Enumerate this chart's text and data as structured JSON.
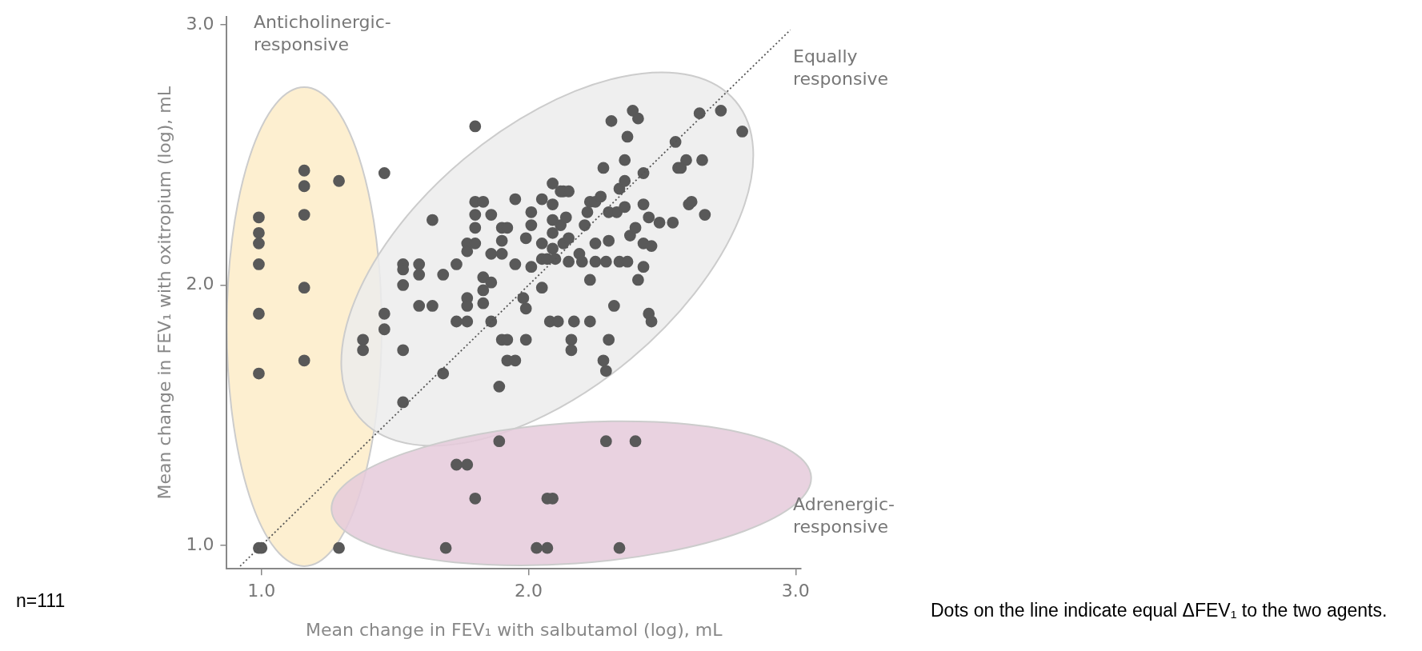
{
  "chart_data": {
    "type": "scatter",
    "xlabel": "Mean change in FEV₁ with salbutamol (log), mL",
    "ylabel": "Mean change in FEV₁ with oxitropium (log), mL",
    "xlim": [
      0.87,
      3.02
    ],
    "ylim": [
      0.91,
      3.03
    ],
    "xticks": [
      {
        "value": 1,
        "label": "1.0"
      },
      {
        "value": 2,
        "label": "2.0"
      },
      {
        "value": 3,
        "label": "3.0"
      }
    ],
    "yticks": [
      {
        "value": 1,
        "label": "1.0"
      },
      {
        "value": 2,
        "label": "2.0"
      },
      {
        "value": 3,
        "label": "3.0"
      }
    ],
    "marker": "circle",
    "annotations": [
      "Anticholinergic-responsive",
      "Equally responsive",
      "Adrenergic-responsive",
      "n=111",
      "Dots on the line indicate equal ΔFEV₁ to the two agents."
    ],
    "series": [
      {
        "type": "scatter",
        "color": "#595959",
        "x": [
          0.99,
          0.99,
          0.99,
          0.99,
          0.99,
          0.99,
          0.99,
          1.0,
          1.16,
          1.16,
          1.16,
          1.16,
          1.16,
          1.29,
          1.46,
          1.38,
          1.38,
          1.46,
          1.46,
          1.53,
          1.53,
          1.53,
          1.53,
          1.53,
          1.59,
          1.59,
          1.59,
          1.64,
          1.64,
          1.68,
          1.68,
          1.73,
          1.73,
          1.77,
          1.77,
          1.77,
          1.77,
          1.77,
          1.8,
          1.8,
          1.8,
          1.8,
          1.8,
          1.83,
          1.83,
          1.83,
          1.83,
          1.86,
          1.86,
          1.86,
          1.86,
          1.9,
          1.9,
          1.9,
          1.9,
          1.89,
          1.92,
          1.92,
          1.92,
          1.95,
          1.95,
          1.95,
          1.99,
          1.99,
          1.99,
          1.98,
          2.01,
          2.01,
          2.01,
          2.05,
          2.05,
          2.05,
          2.05,
          2.07,
          2.08,
          2.11,
          2.09,
          2.09,
          2.09,
          2.09,
          2.09,
          2.1,
          2.12,
          2.13,
          2.15,
          2.12,
          2.13,
          2.14,
          2.15,
          2.15,
          2.16,
          2.16,
          2.17,
          2.2,
          2.19,
          2.21,
          2.22,
          2.23,
          2.23,
          2.25,
          2.27,
          2.28,
          2.25,
          2.25,
          2.29,
          2.28,
          2.23,
          2.29,
          2.3,
          2.3,
          2.3,
          2.31,
          2.32,
          2.34,
          2.34,
          2.33,
          2.36,
          2.36,
          2.36,
          2.37,
          2.37,
          2.38,
          2.39,
          2.41,
          2.43,
          2.43,
          2.45,
          2.45,
          2.46,
          2.46,
          2.41,
          2.4,
          2.43,
          2.49,
          2.54,
          2.55,
          2.56,
          2.57,
          2.59,
          2.6,
          2.61,
          2.65,
          2.64,
          2.66,
          2.72,
          2.8,
          2.43,
          1.89,
          1.73,
          1.77,
          1.8,
          2.07,
          2.09,
          1.69,
          2.03,
          2.07,
          2.29,
          2.4,
          2.34,
          1.29
        ],
        "values": [
          2.26,
          2.2,
          2.16,
          2.08,
          1.89,
          1.66,
          0.99,
          0.99,
          2.44,
          2.38,
          2.27,
          1.99,
          1.71,
          2.4,
          2.43,
          1.79,
          1.75,
          1.89,
          1.83,
          2.08,
          2.06,
          2.0,
          1.75,
          1.55,
          2.08,
          2.04,
          1.92,
          2.25,
          1.92,
          2.04,
          1.66,
          2.08,
          1.86,
          2.16,
          2.13,
          1.95,
          1.92,
          1.86,
          2.61,
          2.32,
          2.27,
          2.22,
          2.16,
          2.32,
          2.03,
          1.98,
          1.93,
          2.27,
          2.12,
          2.01,
          1.86,
          2.22,
          2.17,
          2.12,
          1.79,
          1.61,
          2.22,
          1.79,
          1.71,
          2.33,
          2.08,
          1.71,
          2.18,
          1.79,
          1.91,
          1.95,
          2.28,
          2.23,
          2.07,
          2.33,
          1.99,
          2.16,
          2.1,
          2.1,
          1.86,
          1.86,
          2.39,
          2.31,
          2.25,
          2.2,
          2.14,
          2.1,
          2.36,
          2.36,
          2.36,
          2.23,
          2.16,
          2.26,
          2.18,
          2.09,
          1.79,
          1.75,
          1.86,
          2.09,
          2.12,
          2.23,
          2.28,
          2.02,
          2.32,
          2.32,
          2.34,
          2.45,
          2.09,
          2.16,
          1.67,
          1.71,
          1.86,
          2.09,
          1.79,
          2.28,
          2.17,
          2.63,
          1.92,
          2.09,
          2.37,
          2.28,
          2.48,
          2.3,
          2.4,
          2.57,
          2.09,
          2.19,
          2.67,
          2.64,
          2.16,
          2.43,
          1.89,
          2.26,
          2.15,
          1.86,
          2.02,
          2.22,
          2.07,
          2.24,
          2.24,
          2.55,
          2.45,
          2.45,
          2.48,
          2.31,
          2.32,
          2.48,
          2.66,
          2.27,
          2.67,
          2.59,
          2.31,
          1.4,
          1.31,
          1.31,
          1.18,
          1.18,
          1.18,
          0.99,
          0.99,
          0.99,
          1.4,
          1.4,
          0.99,
          0.99
        ]
      },
      {
        "type": "line",
        "color": "#555555",
        "line_style": "dotted",
        "marker": "none",
        "x": [
          0.92,
          2.98
        ],
        "values": [
          0.92,
          2.98
        ]
      }
    ]
  }
}
